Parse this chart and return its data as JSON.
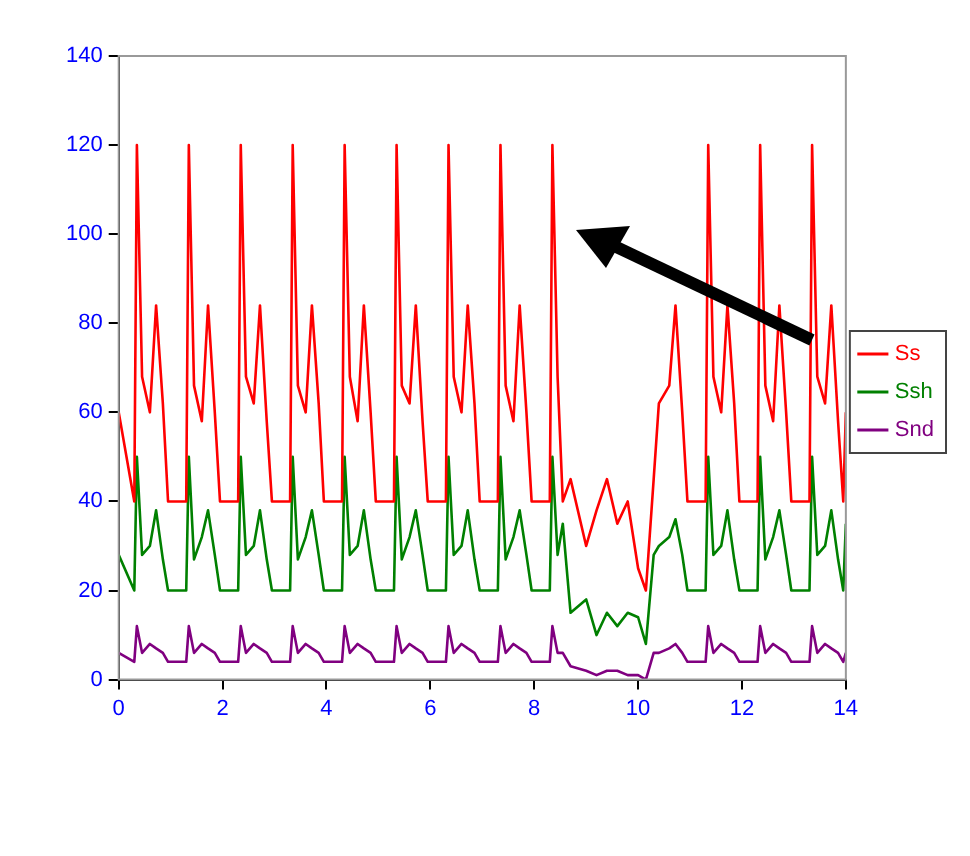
{
  "chart_data": {
    "type": "line",
    "legend": "right",
    "marker": "none",
    "line_style": "solid",
    "grid": false,
    "xlim": [
      0,
      14
    ],
    "xticks": [
      0,
      2,
      4,
      6,
      8,
      10,
      12,
      14
    ],
    "ylim": [
      0,
      140
    ],
    "yticks": [
      0,
      20,
      40,
      60,
      80,
      100,
      120,
      140
    ],
    "x": [
      0,
      0.3,
      0.35,
      0.45,
      0.6,
      0.72,
      0.85,
      0.95,
      1,
      1.3,
      1.35,
      1.45,
      1.6,
      1.72,
      1.85,
      1.95,
      2,
      2.3,
      2.35,
      2.45,
      2.6,
      2.72,
      2.85,
      2.95,
      3,
      3.3,
      3.35,
      3.45,
      3.6,
      3.72,
      3.85,
      3.95,
      4,
      4.3,
      4.35,
      4.45,
      4.6,
      4.72,
      4.85,
      4.95,
      5,
      5.3,
      5.35,
      5.45,
      5.6,
      5.72,
      5.85,
      5.95,
      6,
      6.3,
      6.35,
      6.45,
      6.6,
      6.72,
      6.85,
      6.95,
      7,
      7.3,
      7.35,
      7.45,
      7.6,
      7.72,
      7.85,
      7.95,
      8,
      8.3,
      8.35,
      8.45,
      8.55,
      8.7,
      9,
      9.2,
      9.4,
      9.6,
      9.8,
      10,
      10.15,
      10.3,
      10.4,
      10.6,
      10.72,
      10.85,
      10.95,
      11,
      11.3,
      11.35,
      11.45,
      11.6,
      11.72,
      11.85,
      11.95,
      12,
      12.3,
      12.35,
      12.45,
      12.6,
      12.72,
      12.85,
      12.95,
      13,
      13.3,
      13.35,
      13.45,
      13.6,
      13.72,
      13.85,
      13.95,
      14
    ],
    "series": [
      {
        "name": "Ss",
        "color": "#ff0000",
        "values": [
          60,
          40,
          120,
          68,
          60,
          84,
          62,
          40,
          40,
          40,
          120,
          66,
          58,
          84,
          60,
          40,
          40,
          40,
          120,
          68,
          62,
          84,
          58,
          40,
          40,
          40,
          120,
          66,
          60,
          84,
          62,
          40,
          40,
          40,
          120,
          68,
          58,
          84,
          60,
          40,
          40,
          40,
          120,
          66,
          62,
          84,
          58,
          40,
          40,
          40,
          120,
          68,
          60,
          84,
          62,
          40,
          40,
          40,
          120,
          66,
          58,
          84,
          60,
          40,
          40,
          40,
          120,
          68,
          40,
          45,
          30,
          38,
          45,
          35,
          40,
          25,
          20,
          45,
          62,
          66,
          84,
          60,
          40,
          40,
          40,
          120,
          68,
          60,
          84,
          62,
          40,
          40,
          40,
          120,
          66,
          58,
          84,
          60,
          40,
          40,
          40,
          120,
          68,
          62,
          84,
          58,
          40,
          60
        ]
      },
      {
        "name": "Ssh",
        "color": "#008000",
        "values": [
          28,
          20,
          50,
          28,
          30,
          38,
          27,
          20,
          20,
          20,
          50,
          27,
          32,
          38,
          28,
          20,
          20,
          20,
          50,
          28,
          30,
          38,
          27,
          20,
          20,
          20,
          50,
          27,
          32,
          38,
          28,
          20,
          20,
          20,
          50,
          28,
          30,
          38,
          27,
          20,
          20,
          20,
          50,
          27,
          32,
          38,
          28,
          20,
          20,
          20,
          50,
          28,
          30,
          38,
          27,
          20,
          20,
          20,
          50,
          27,
          32,
          38,
          28,
          20,
          20,
          20,
          50,
          28,
          35,
          15,
          18,
          10,
          15,
          12,
          15,
          14,
          8,
          28,
          30,
          32,
          36,
          28,
          20,
          20,
          20,
          50,
          28,
          30,
          38,
          27,
          20,
          20,
          20,
          50,
          27,
          32,
          38,
          28,
          20,
          20,
          20,
          50,
          28,
          30,
          38,
          27,
          20,
          35
        ]
      },
      {
        "name": "Snd",
        "color": "#800080",
        "values": [
          6,
          4,
          12,
          6,
          8,
          7,
          6,
          4,
          4,
          4,
          12,
          6,
          8,
          7,
          6,
          4,
          4,
          4,
          12,
          6,
          8,
          7,
          6,
          4,
          4,
          4,
          12,
          6,
          8,
          7,
          6,
          4,
          4,
          4,
          12,
          6,
          8,
          7,
          6,
          4,
          4,
          4,
          12,
          6,
          8,
          7,
          6,
          4,
          4,
          4,
          12,
          6,
          8,
          7,
          6,
          4,
          4,
          4,
          12,
          6,
          8,
          7,
          6,
          4,
          4,
          4,
          12,
          6,
          6,
          3,
          2,
          1,
          2,
          2,
          1,
          1,
          0,
          6,
          6,
          7,
          8,
          6,
          4,
          4,
          4,
          12,
          6,
          8,
          7,
          6,
          4,
          4,
          4,
          12,
          6,
          8,
          7,
          6,
          4,
          4,
          4,
          12,
          6,
          8,
          7,
          6,
          4,
          6
        ]
      }
    ]
  }
}
